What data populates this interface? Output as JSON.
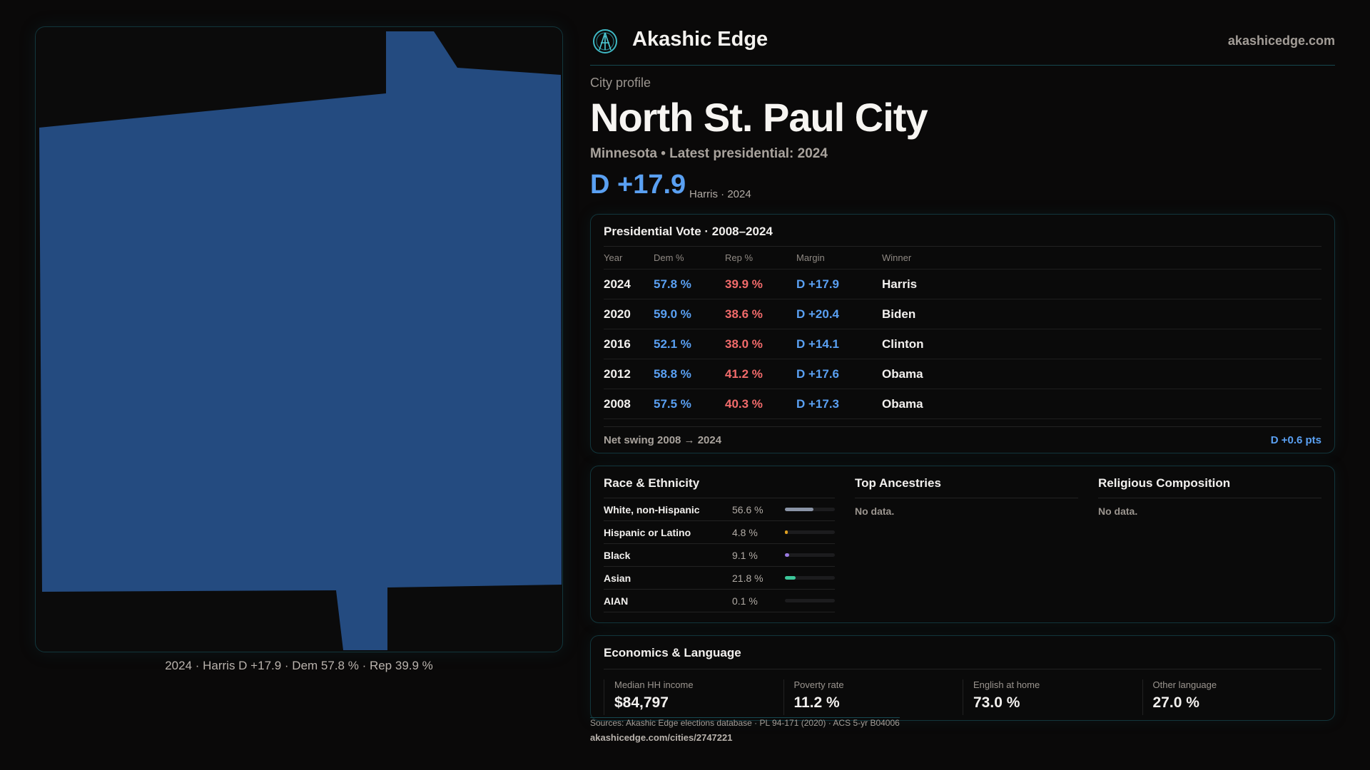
{
  "brand": {
    "name": "Akashic Edge",
    "site": "akashicedge.com"
  },
  "colors": {
    "dem": "#5aa0f2",
    "rep": "#f26b6b",
    "map_fill": "#244b80"
  },
  "map": {
    "caption": "2024 · Harris D +17.9 · Dem 57.8 % · Rep 39.9 %"
  },
  "profile": {
    "kicker": "City profile",
    "title": "North St. Paul City",
    "subtitle": "Minnesota • Latest presidential: 2024",
    "margin": "D +17.9",
    "margin_note": "Harris · 2024"
  },
  "presidential": {
    "title": "Presidential Vote · 2008–2024",
    "columns": [
      "Year",
      "Dem %",
      "Rep %",
      "Margin",
      "Winner"
    ],
    "rows": [
      {
        "year": "2024",
        "dem": "57.8 %",
        "rep": "39.9 %",
        "margin": "D +17.9",
        "winner": "Harris"
      },
      {
        "year": "2020",
        "dem": "59.0 %",
        "rep": "38.6 %",
        "margin": "D +20.4",
        "winner": "Biden"
      },
      {
        "year": "2016",
        "dem": "52.1 %",
        "rep": "38.0 %",
        "margin": "D +14.1",
        "winner": "Clinton"
      },
      {
        "year": "2012",
        "dem": "58.8 %",
        "rep": "41.2 %",
        "margin": "D +17.6",
        "winner": "Obama"
      },
      {
        "year": "2008",
        "dem": "57.5 %",
        "rep": "40.3 %",
        "margin": "D +17.3",
        "winner": "Obama"
      }
    ],
    "swing_label": "Net swing 2008 → 2024",
    "swing_value": "D +0.6 pts"
  },
  "race": {
    "title": "Race & Ethnicity",
    "items": [
      {
        "label": "White, non-Hispanic",
        "value": "56.6 %",
        "pct": 56.6,
        "color": "#8a94a6"
      },
      {
        "label": "Hispanic or Latino",
        "value": "4.8 %",
        "pct": 4.8,
        "color": "#e0a020"
      },
      {
        "label": "Black",
        "value": "9.1 %",
        "pct": 9.1,
        "color": "#9a7ae0"
      },
      {
        "label": "Asian",
        "value": "21.8 %",
        "pct": 21.8,
        "color": "#3cc79a"
      },
      {
        "label": "AIAN",
        "value": "0.1 %",
        "pct": 0.1,
        "color": "#666"
      }
    ]
  },
  "ancestries": {
    "title": "Top Ancestries",
    "empty": "No data."
  },
  "religion": {
    "title": "Religious Composition",
    "empty": "No data."
  },
  "economics": {
    "title": "Economics & Language",
    "stats": [
      {
        "label": "Median HH income",
        "value": "$84,797"
      },
      {
        "label": "Poverty rate",
        "value": "11.2 %"
      },
      {
        "label": "English at home",
        "value": "73.0 %"
      },
      {
        "label": "Other language",
        "value": "27.0 %"
      }
    ]
  },
  "footer": {
    "sources": "Sources: Akashic Edge elections database · PL 94-171 (2020) · ACS 5-yr B04006",
    "url": "akashicedge.com/cities/2747221"
  }
}
